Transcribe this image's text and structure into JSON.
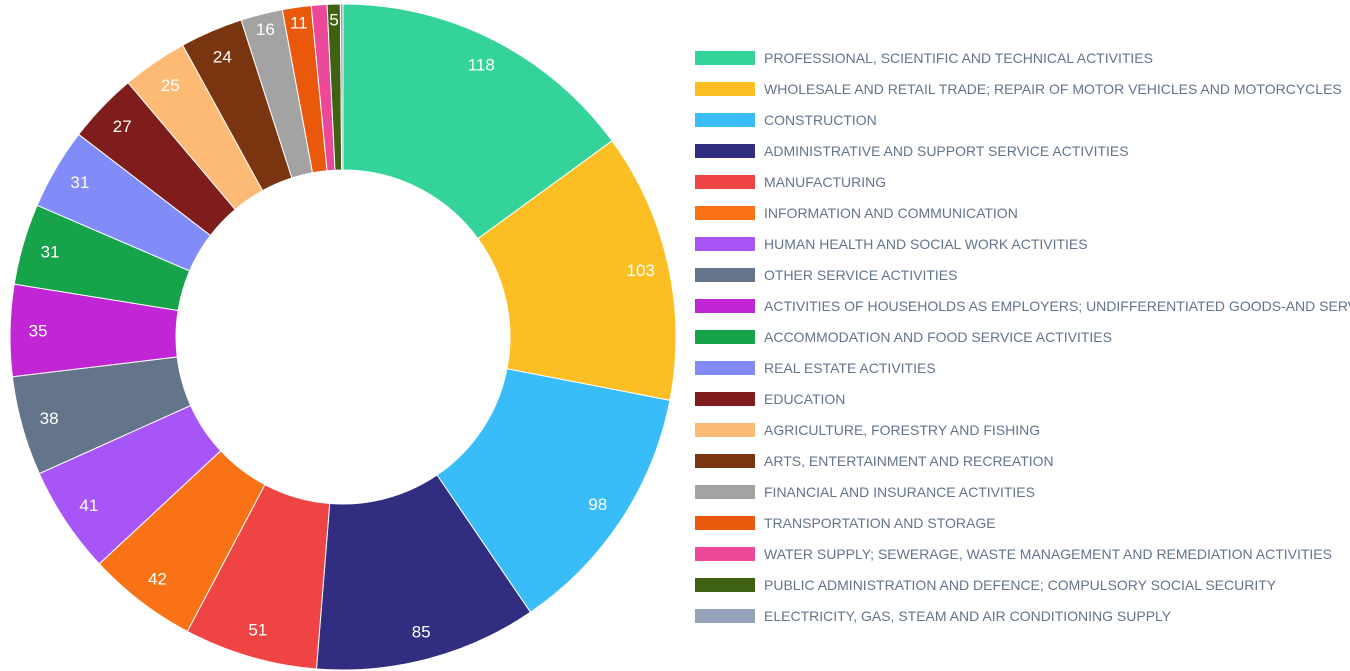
{
  "chart_data": {
    "type": "donut",
    "categories": [
      "PROFESSIONAL, SCIENTIFIC AND TECHNICAL ACTIVITIES",
      "WHOLESALE AND RETAIL TRADE; REPAIR OF MOTOR VEHICLES AND MOTORCYCLES",
      "CONSTRUCTION",
      "ADMINISTRATIVE AND SUPPORT SERVICE ACTIVITIES",
      "MANUFACTURING",
      "INFORMATION AND COMMUNICATION",
      "HUMAN HEALTH AND SOCIAL WORK ACTIVITIES",
      "OTHER SERVICE ACTIVITIES",
      "ACTIVITIES OF HOUSEHOLDS AS EMPLOYERS; UNDIFFERENTIATED GOODS-AND SERVICES-PRODUCING ACTIVITIES OF HOUSEHOLDS FOR OWN USE",
      "ACCOMMODATION AND FOOD SERVICE ACTIVITIES",
      "REAL ESTATE ACTIVITIES",
      "EDUCATION",
      "AGRICULTURE, FORESTRY AND FISHING",
      "ARTS, ENTERTAINMENT AND RECREATION",
      "FINANCIAL AND INSURANCE ACTIVITIES",
      "TRANSPORTATION AND STORAGE",
      "WATER SUPPLY; SEWERAGE, WASTE MANAGEMENT AND REMEDIATION ACTIVITIES",
      "PUBLIC ADMINISTRATION AND DEFENCE; COMPULSORY SOCIAL SECURITY",
      "ELECTRICITY, GAS, STEAM AND AIR CONDITIONING SUPPLY"
    ],
    "values": [
      118,
      103,
      98,
      85,
      51,
      42,
      41,
      38,
      35,
      31,
      31,
      27,
      25,
      24,
      16,
      11,
      6,
      5,
      1
    ],
    "value_labels": [
      "118",
      "103",
      "98",
      "85",
      "51",
      "42",
      "41",
      "38",
      "35",
      "31",
      "31",
      "27",
      "25",
      "24",
      "16",
      "11",
      null,
      "5",
      null
    ],
    "colors": [
      "#34d399",
      "#fbbf24",
      "#38bdf8",
      "#312e81",
      "#ef4444",
      "#f97316",
      "#a855f7",
      "#64748b",
      "#c026d3",
      "#16a34a",
      "#818cf8",
      "#7f1d1d",
      "#fdba74",
      "#78350f",
      "#a3a3a3",
      "#ea580c",
      "#ec4899",
      "#3f6212",
      "#94a3b8"
    ],
    "legend": "right"
  }
}
